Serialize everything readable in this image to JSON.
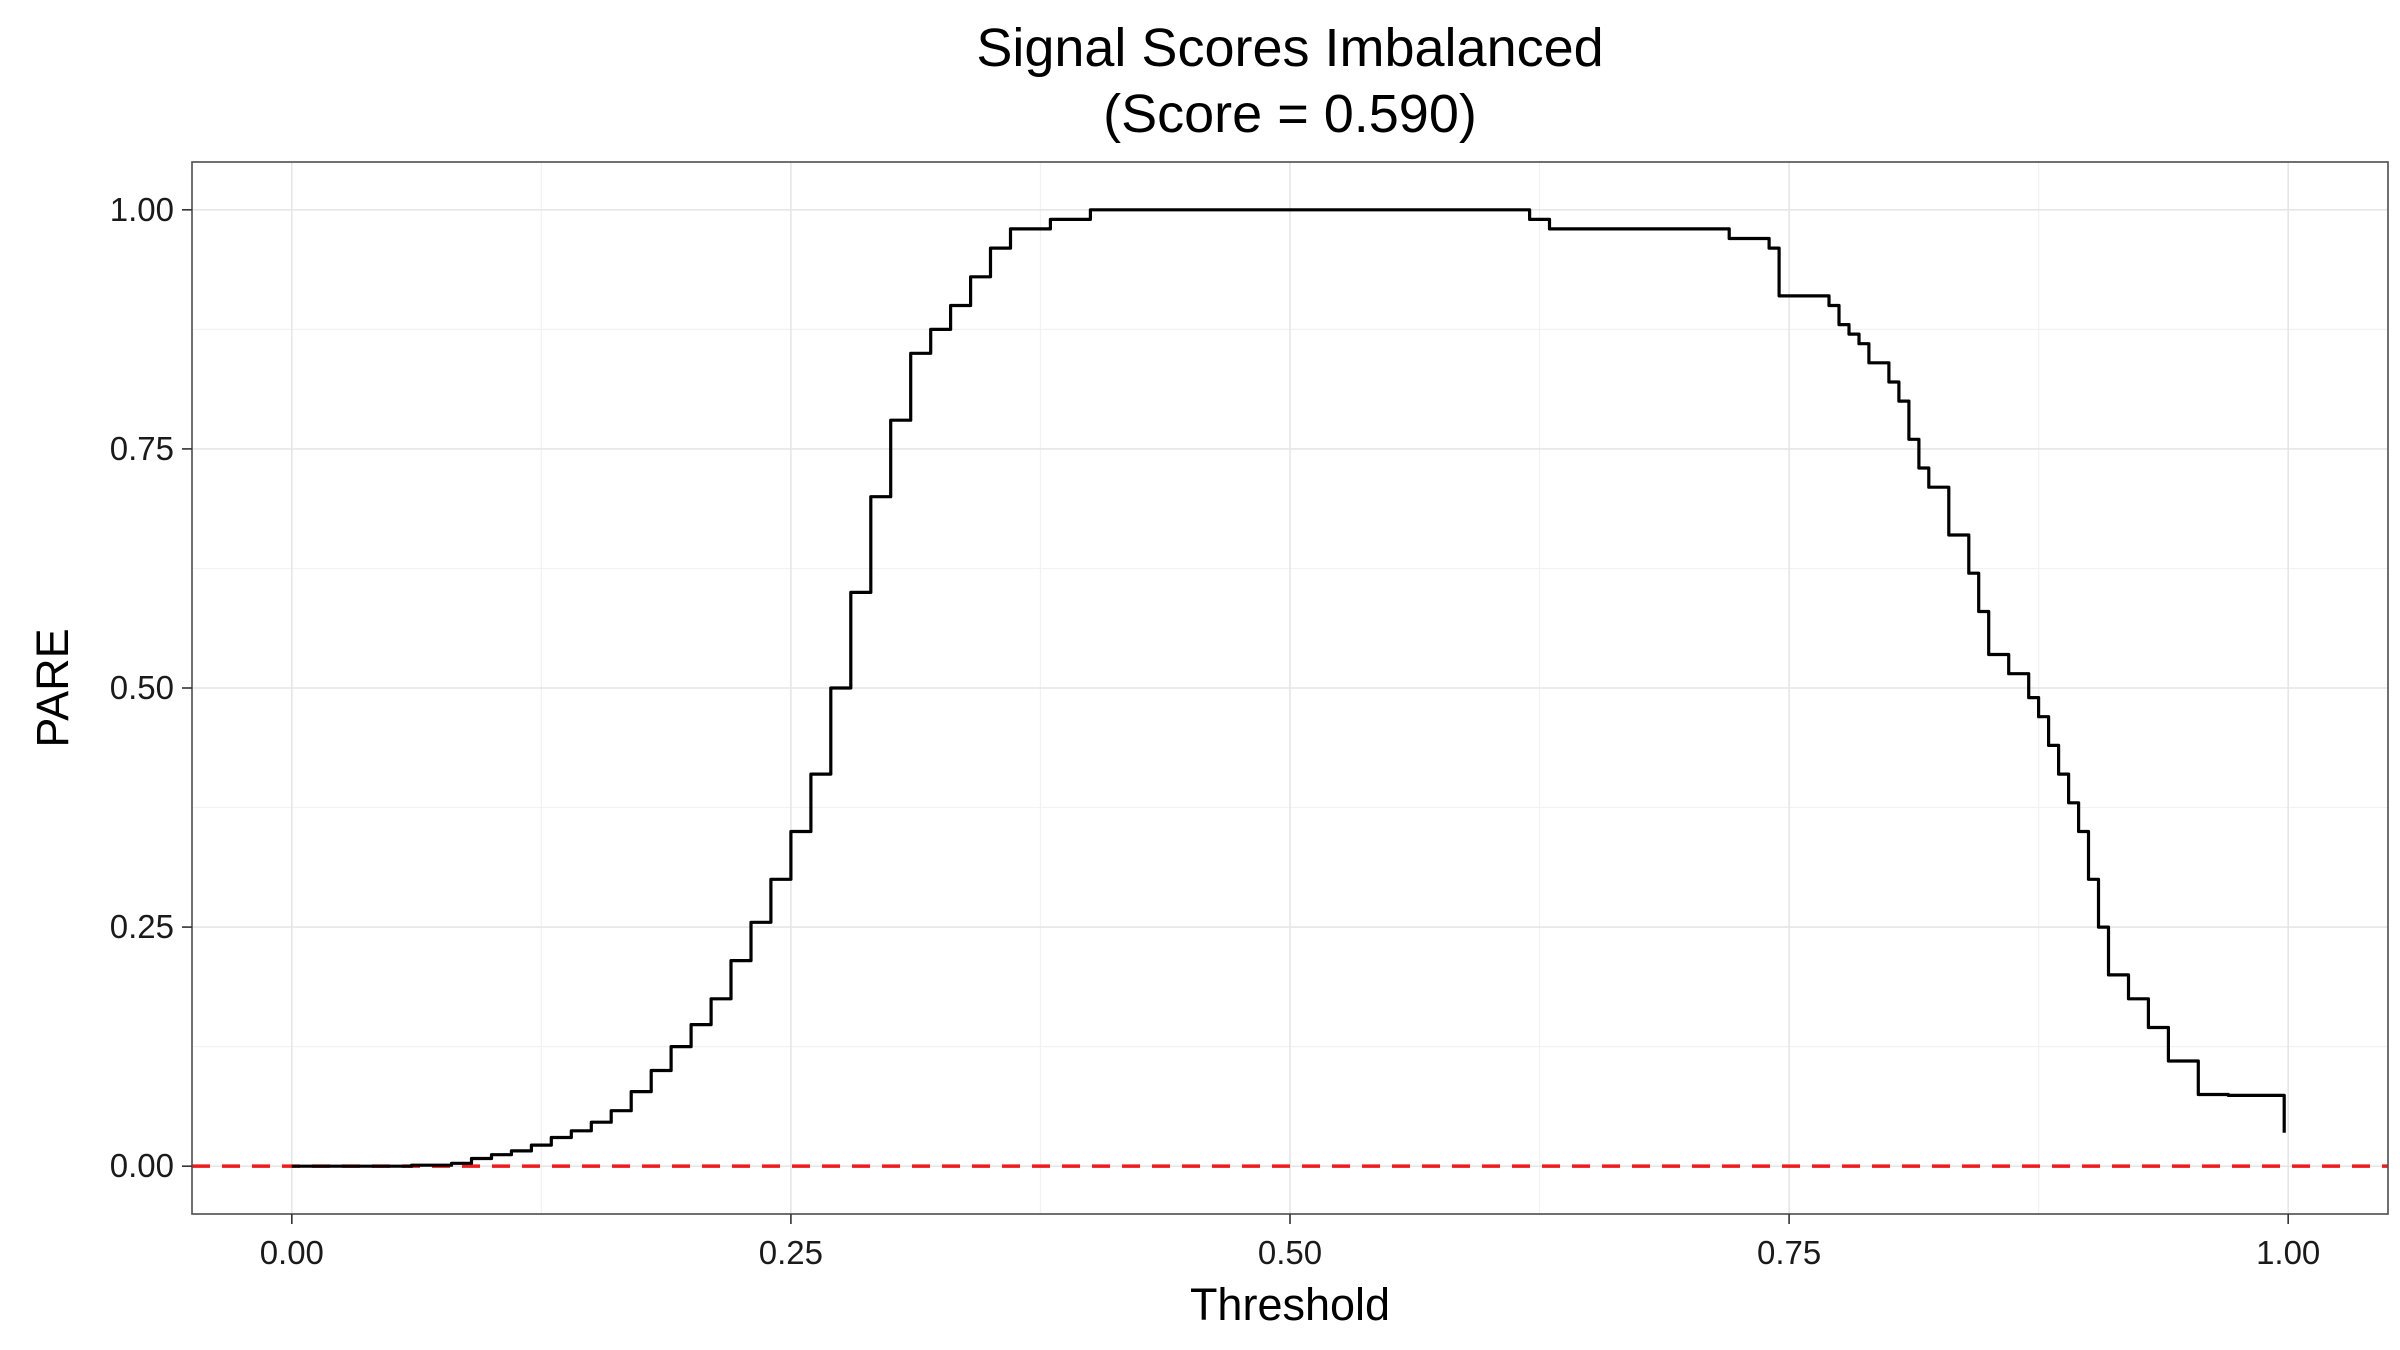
{
  "chart_data": {
    "type": "line",
    "title": "Signal Scores Imbalanced",
    "subtitle": "(Score = 0.590)",
    "xlabel": "Threshold",
    "ylabel": "PARE",
    "xlim": [
      -0.05,
      1.05
    ],
    "ylim": [
      -0.05,
      1.05
    ],
    "x_ticks": [
      0.0,
      0.25,
      0.5,
      0.75,
      1.0
    ],
    "x_tick_labels": [
      "0.00",
      "0.25",
      "0.50",
      "0.75",
      "1.00"
    ],
    "y_ticks": [
      0.0,
      0.25,
      0.5,
      0.75,
      1.0
    ],
    "y_tick_labels": [
      "0.00",
      "0.25",
      "0.50",
      "0.75",
      "1.00"
    ],
    "grid": true,
    "legend": "none",
    "reference_line": {
      "y": 0.0,
      "color": "#ee1c1c",
      "style": "dashed"
    },
    "series_color": "#000000",
    "series": [
      {
        "step": true,
        "x": [
          0.0,
          0.02,
          0.04,
          0.06,
          0.08,
          0.09,
          0.1,
          0.11,
          0.12,
          0.13,
          0.14,
          0.15,
          0.16,
          0.17,
          0.18,
          0.19,
          0.2,
          0.21,
          0.22,
          0.23,
          0.24,
          0.25,
          0.26,
          0.27,
          0.28,
          0.29,
          0.3,
          0.31,
          0.32,
          0.33,
          0.34,
          0.35,
          0.36,
          0.38,
          0.4,
          0.45,
          0.5,
          0.55,
          0.6,
          0.62,
          0.63,
          0.65,
          0.7,
          0.72,
          0.74,
          0.745,
          0.77,
          0.775,
          0.78,
          0.785,
          0.79,
          0.8,
          0.805,
          0.81,
          0.815,
          0.82,
          0.83,
          0.84,
          0.845,
          0.85,
          0.86,
          0.87,
          0.875,
          0.88,
          0.885,
          0.89,
          0.895,
          0.9,
          0.905,
          0.91,
          0.92,
          0.93,
          0.94,
          0.955,
          0.97,
          0.99,
          0.998
        ],
        "y": [
          0.0,
          0.0,
          0.0,
          0.001,
          0.003,
          0.008,
          0.012,
          0.016,
          0.022,
          0.03,
          0.037,
          0.046,
          0.058,
          0.078,
          0.1,
          0.125,
          0.148,
          0.175,
          0.215,
          0.255,
          0.3,
          0.35,
          0.41,
          0.5,
          0.6,
          0.7,
          0.78,
          0.85,
          0.875,
          0.9,
          0.93,
          0.96,
          0.98,
          0.99,
          1.0,
          1.0,
          1.0,
          1.0,
          1.0,
          0.99,
          0.98,
          0.98,
          0.98,
          0.97,
          0.96,
          0.91,
          0.9,
          0.88,
          0.87,
          0.86,
          0.84,
          0.82,
          0.8,
          0.76,
          0.73,
          0.71,
          0.66,
          0.62,
          0.58,
          0.535,
          0.515,
          0.49,
          0.47,
          0.44,
          0.41,
          0.38,
          0.35,
          0.3,
          0.25,
          0.2,
          0.175,
          0.145,
          0.11,
          0.075,
          0.074,
          0.074,
          0.035
        ]
      }
    ]
  }
}
